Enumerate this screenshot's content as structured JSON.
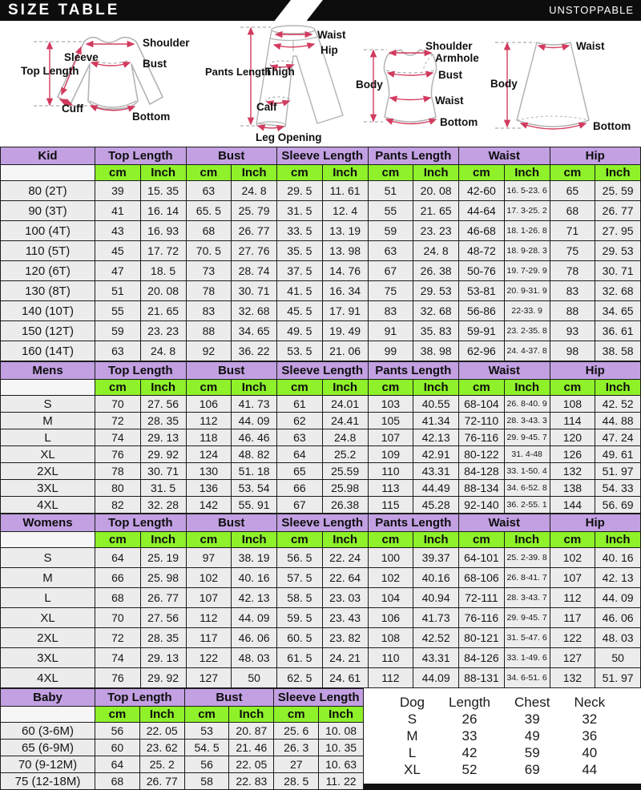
{
  "header": {
    "title": "SIZE TABLE",
    "brand": "UNSTOPPABLE"
  },
  "colors": {
    "bar": "#0d0d0d",
    "section_header_purple": "#c2a0e2",
    "unit_header_green": "#8ef129",
    "arrow_red": "#d23b5e",
    "garment_gray": "#b3b3b3"
  },
  "diagrams": {
    "shirt": {
      "shoulder": "Shoulder",
      "sleeve": "Sleeve",
      "top_length": "Top Length",
      "bust": "Bust",
      "cuff": "Cuff",
      "bottom": "Bottom"
    },
    "pants": {
      "waist": "Waist",
      "hip": "Hip",
      "pants_length": "Pants Length",
      "thigh": "Thigh",
      "calf": "Calf",
      "leg_opening": "Leg Opening"
    },
    "vest": {
      "shoulder": "Shoulder",
      "armhole": "Armhole",
      "bust": "Bust",
      "body": "Body",
      "waist": "Waist",
      "bottom": "Bottom"
    },
    "skirt": {
      "waist": "Waist",
      "body": "Body",
      "bottom": "Bottom"
    }
  },
  "size_tables": [
    {
      "section": "Kid",
      "columns": [
        "Top Length",
        "Bust",
        "Sleeve Length",
        "Pants Length",
        "Waist",
        "Hip"
      ],
      "units": [
        "cm",
        "Inch",
        "cm",
        "Inch",
        "cm",
        "Inch",
        "cm",
        "Inch",
        "cm",
        "Inch",
        "cm",
        "Inch"
      ],
      "rows": [
        {
          "label": "80 (2T)",
          "values": [
            "39",
            "15. 35",
            "63",
            "24. 8",
            "29. 5",
            "11. 61",
            "51",
            "20. 08",
            "42-60",
            "16. 5-23. 6",
            "65",
            "25. 59"
          ]
        },
        {
          "label": "90 (3T)",
          "values": [
            "41",
            "16. 14",
            "65. 5",
            "25. 79",
            "31. 5",
            "12. 4",
            "55",
            "21. 65",
            "44-64",
            "17. 3-25. 2",
            "68",
            "26. 77"
          ]
        },
        {
          "label": "100 (4T)",
          "values": [
            "43",
            "16. 93",
            "68",
            "26. 77",
            "33. 5",
            "13. 19",
            "59",
            "23. 23",
            "46-68",
            "18. 1-26. 8",
            "71",
            "27. 95"
          ]
        },
        {
          "label": "110 (5T)",
          "values": [
            "45",
            "17. 72",
            "70. 5",
            "27. 76",
            "35. 5",
            "13. 98",
            "63",
            "24. 8",
            "48-72",
            "18. 9-28. 3",
            "75",
            "29. 53"
          ]
        },
        {
          "label": "120 (6T)",
          "values": [
            "47",
            "18. 5",
            "73",
            "28. 74",
            "37. 5",
            "14. 76",
            "67",
            "26. 38",
            "50-76",
            "19. 7-29. 9",
            "78",
            "30. 71"
          ]
        },
        {
          "label": "130 (8T)",
          "values": [
            "51",
            "20. 08",
            "78",
            "30. 71",
            "41. 5",
            "16. 34",
            "75",
            "29. 53",
            "53-81",
            "20. 9-31. 9",
            "83",
            "32. 68"
          ]
        },
        {
          "label": "140 (10T)",
          "values": [
            "55",
            "21. 65",
            "83",
            "32. 68",
            "45. 5",
            "17. 91",
            "83",
            "32. 68",
            "56-86",
            "22-33. 9",
            "88",
            "34. 65"
          ]
        },
        {
          "label": "150 (12T)",
          "values": [
            "59",
            "23. 23",
            "88",
            "34. 65",
            "49. 5",
            "19. 49",
            "91",
            "35. 83",
            "59-91",
            "23. 2-35. 8",
            "93",
            "36. 61"
          ]
        },
        {
          "label": "160 (14T)",
          "values": [
            "63",
            "24. 8",
            "92",
            "36. 22",
            "53. 5",
            "21. 06",
            "99",
            "38. 98",
            "62-96",
            "24. 4-37. 8",
            "98",
            "38. 58"
          ]
        }
      ]
    },
    {
      "section": "Mens",
      "columns": [
        "Top Length",
        "Bust",
        "Sleeve Length",
        "Pants Length",
        "Waist",
        "Hip"
      ],
      "units": [
        "cm",
        "Inch",
        "cm",
        "Inch",
        "cm",
        "Inch",
        "cm",
        "Inch",
        "cm",
        "Inch",
        "cm",
        "Inch"
      ],
      "rows": [
        {
          "label": "S",
          "values": [
            "70",
            "27. 56",
            "106",
            "41. 73",
            "61",
            "24.01",
            "103",
            "40.55",
            "68-104",
            "26. 8-40. 9",
            "108",
            "42. 52"
          ]
        },
        {
          "label": "M",
          "values": [
            "72",
            "28. 35",
            "112",
            "44. 09",
            "62",
            "24.41",
            "105",
            "41.34",
            "72-110",
            "28. 3-43. 3",
            "114",
            "44. 88"
          ]
        },
        {
          "label": "L",
          "values": [
            "74",
            "29. 13",
            "118",
            "46. 46",
            "63",
            "24.8",
            "107",
            "42.13",
            "76-116",
            "29. 9-45. 7",
            "120",
            "47. 24"
          ]
        },
        {
          "label": "XL",
          "values": [
            "76",
            "29. 92",
            "124",
            "48. 82",
            "64",
            "25.2",
            "109",
            "42.91",
            "80-122",
            "31. 4-48",
            "126",
            "49. 61"
          ]
        },
        {
          "label": "2XL",
          "values": [
            "78",
            "30. 71",
            "130",
            "51. 18",
            "65",
            "25.59",
            "110",
            "43.31",
            "84-128",
            "33. 1-50. 4",
            "132",
            "51. 97"
          ]
        },
        {
          "label": "3XL",
          "values": [
            "80",
            "31. 5",
            "136",
            "53. 54",
            "66",
            "25.98",
            "113",
            "44.49",
            "88-134",
            "34. 6-52. 8",
            "138",
            "54. 33"
          ]
        },
        {
          "label": "4XL",
          "values": [
            "82",
            "32. 28",
            "142",
            "55. 91",
            "67",
            "26.38",
            "115",
            "45.28",
            "92-140",
            "36. 2-55. 1",
            "144",
            "56. 69"
          ]
        }
      ]
    },
    {
      "section": "Womens",
      "columns": [
        "Top Length",
        "Bust",
        "Sleeve Length",
        "Pants Length",
        "Waist",
        "Hip"
      ],
      "units": [
        "cm",
        "Inch",
        "cm",
        "Inch",
        "cm",
        "Inch",
        "cm",
        "Inch",
        "cm",
        "Inch",
        "cm",
        "Inch"
      ],
      "rows": [
        {
          "label": "S",
          "values": [
            "64",
            "25. 19",
            "97",
            "38. 19",
            "56. 5",
            "22. 24",
            "100",
            "39.37",
            "64-101",
            "25. 2-39. 8",
            "102",
            "40. 16"
          ]
        },
        {
          "label": "M",
          "values": [
            "66",
            "25. 98",
            "102",
            "40. 16",
            "57. 5",
            "22. 64",
            "102",
            "40.16",
            "68-106",
            "26. 8-41. 7",
            "107",
            "42. 13"
          ]
        },
        {
          "label": "L",
          "values": [
            "68",
            "26. 77",
            "107",
            "42. 13",
            "58. 5",
            "23. 03",
            "104",
            "40.94",
            "72-111",
            "28. 3-43. 7",
            "112",
            "44. 09"
          ]
        },
        {
          "label": "XL",
          "values": [
            "70",
            "27. 56",
            "112",
            "44. 09",
            "59. 5",
            "23. 43",
            "106",
            "41.73",
            "76-116",
            "29. 9-45. 7",
            "117",
            "46. 06"
          ]
        },
        {
          "label": "2XL",
          "values": [
            "72",
            "28. 35",
            "117",
            "46. 06",
            "60. 5",
            "23. 82",
            "108",
            "42.52",
            "80-121",
            "31. 5-47. 6",
            "122",
            "48. 03"
          ]
        },
        {
          "label": "3XL",
          "values": [
            "74",
            "29. 13",
            "122",
            "48. 03",
            "61. 5",
            "24. 21",
            "110",
            "43.31",
            "84-126",
            "33. 1-49. 6",
            "127",
            "50"
          ]
        },
        {
          "label": "4XL",
          "values": [
            "76",
            "29. 92",
            "127",
            "50",
            "62. 5",
            "24. 61",
            "112",
            "44.09",
            "88-131",
            "34. 6-51. 6",
            "132",
            "51. 97"
          ]
        }
      ]
    }
  ],
  "baby_table": {
    "section": "Baby",
    "columns": [
      "Top Length",
      "Bust",
      "Sleeve Length"
    ],
    "units": [
      "cm",
      "Inch",
      "cm",
      "Inch",
      "cm",
      "Inch"
    ],
    "rows": [
      {
        "label": "60 (3-6M)",
        "values": [
          "56",
          "22. 05",
          "53",
          "20. 87",
          "25. 6",
          "10. 08"
        ]
      },
      {
        "label": "65 (6-9M)",
        "values": [
          "60",
          "23. 62",
          "54. 5",
          "21. 46",
          "26. 3",
          "10. 35"
        ]
      },
      {
        "label": "70 (9-12M)",
        "values": [
          "64",
          "25. 2",
          "56",
          "22. 05",
          "27",
          "10. 63"
        ]
      },
      {
        "label": "75 (12-18M)",
        "values": [
          "68",
          "26. 77",
          "58",
          "22. 83",
          "28. 5",
          "11. 22"
        ]
      }
    ]
  },
  "dog_table": {
    "headers": [
      "Dog",
      "Length",
      "Chest",
      "Neck"
    ],
    "rows": [
      {
        "label": "S",
        "values": [
          "26",
          "39",
          "32"
        ]
      },
      {
        "label": "M",
        "values": [
          "33",
          "49",
          "36"
        ]
      },
      {
        "label": "L",
        "values": [
          "42",
          "59",
          "40"
        ]
      },
      {
        "label": "XL",
        "values": [
          "52",
          "69",
          "44"
        ]
      }
    ]
  }
}
